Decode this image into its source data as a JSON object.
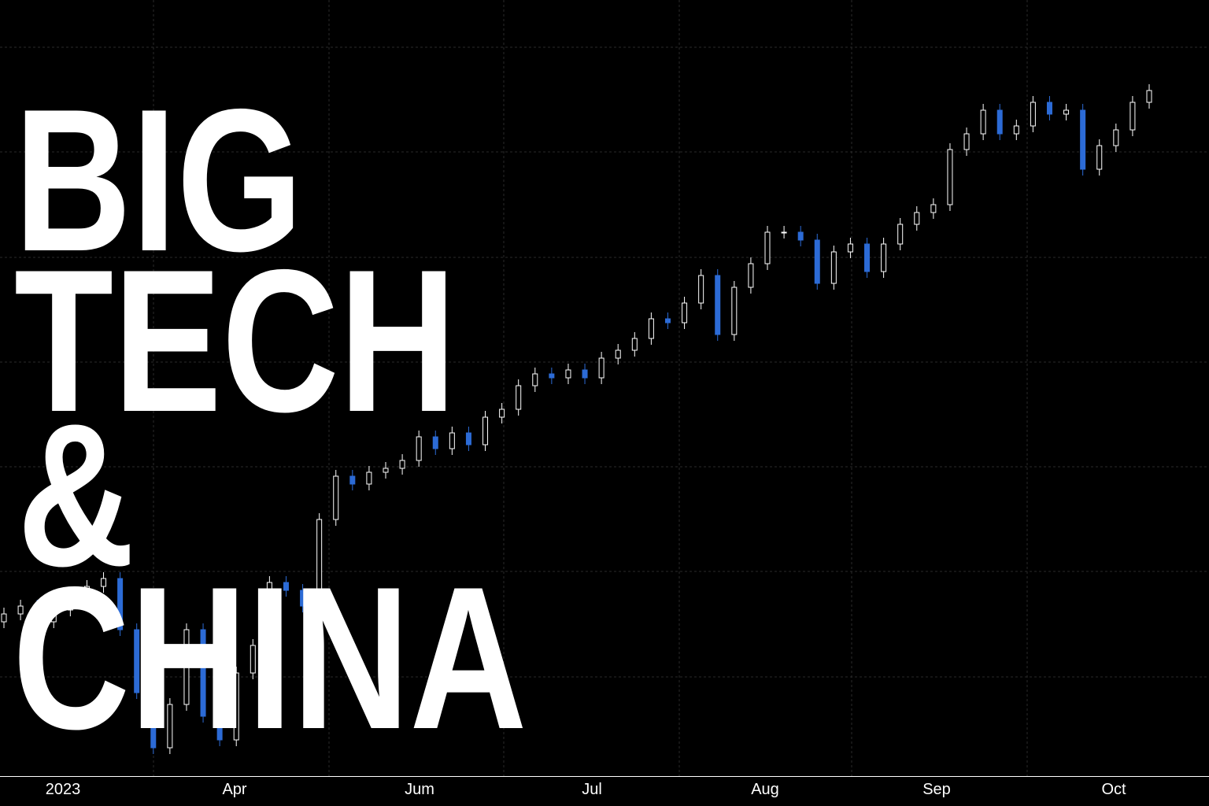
{
  "chart_data": {
    "type": "candlestick",
    "title_lines": [
      "BIG",
      "TECH",
      "&",
      "CHINA"
    ],
    "x_labels": [
      "2023",
      "Apr",
      "Jum",
      "Jul",
      "Aug",
      "Sep",
      "Oct"
    ],
    "ylim": [
      0,
      986
    ],
    "up_color": "#ffffff",
    "down_color": "#2c6bd6",
    "open": [
      196,
      206,
      216,
      196,
      211,
      226,
      241,
      251,
      186,
      106,
      36,
      91,
      186,
      76,
      46,
      131,
      166,
      246,
      236,
      216,
      326,
      381,
      371,
      386,
      391,
      401,
      431,
      416,
      436,
      421,
      456,
      466,
      496,
      511,
      506,
      516,
      506,
      531,
      541,
      556,
      581,
      576,
      601,
      636,
      561,
      621,
      651,
      691,
      691,
      681,
      626,
      666,
      676,
      641,
      676,
      701,
      716,
      726,
      796,
      816,
      846,
      816,
      826,
      856,
      841,
      846,
      771,
      801,
      821,
      856
    ],
    "high": [
      214,
      224,
      224,
      219,
      234,
      249,
      259,
      259,
      194,
      114,
      99,
      194,
      194,
      84,
      139,
      174,
      254,
      254,
      244,
      334,
      389,
      389,
      394,
      399,
      409,
      439,
      439,
      444,
      444,
      464,
      474,
      504,
      519,
      519,
      524,
      524,
      539,
      549,
      564,
      589,
      589,
      609,
      644,
      644,
      629,
      659,
      699,
      699,
      699,
      689,
      674,
      684,
      684,
      684,
      709,
      724,
      734,
      804,
      824,
      854,
      854,
      834,
      864,
      864,
      854,
      854,
      809,
      829,
      864,
      879
    ],
    "low": [
      188,
      198,
      188,
      188,
      203,
      218,
      233,
      178,
      98,
      28,
      28,
      83,
      68,
      38,
      38,
      123,
      158,
      228,
      208,
      208,
      318,
      363,
      363,
      378,
      383,
      393,
      408,
      408,
      413,
      413,
      448,
      458,
      488,
      498,
      498,
      498,
      498,
      523,
      533,
      548,
      568,
      568,
      593,
      553,
      553,
      613,
      643,
      683,
      673,
      618,
      618,
      658,
      633,
      633,
      668,
      693,
      708,
      718,
      788,
      808,
      808,
      808,
      818,
      833,
      833,
      763,
      763,
      793,
      813,
      848
    ],
    "close": [
      206,
      216,
      196,
      211,
      226,
      241,
      251,
      186,
      106,
      36,
      91,
      186,
      76,
      46,
      131,
      166,
      246,
      236,
      216,
      326,
      381,
      371,
      386,
      391,
      401,
      431,
      416,
      436,
      421,
      456,
      466,
      496,
      511,
      506,
      516,
      506,
      531,
      541,
      556,
      581,
      576,
      601,
      636,
      561,
      621,
      651,
      691,
      691,
      681,
      626,
      666,
      676,
      641,
      676,
      701,
      716,
      726,
      796,
      816,
      846,
      816,
      826,
      856,
      841,
      846,
      771,
      801,
      821,
      856,
      871
    ]
  }
}
